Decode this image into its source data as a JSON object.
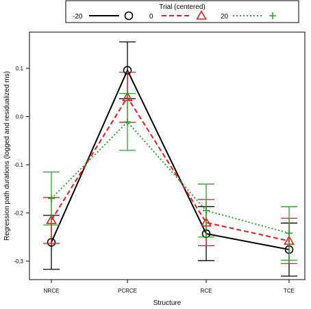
{
  "chart_data": {
    "type": "line",
    "title": "",
    "xlabel": "Structure",
    "ylabel": "Regression path durations (logged and residualized ms)",
    "categories": [
      "NRCE",
      "PCRCE",
      "RCE",
      "TCE"
    ],
    "ylim": [
      -0.35,
      0.15
    ],
    "yticks": [
      0.1,
      0.0,
      -0.1,
      -0.2,
      -0.3
    ],
    "ytick_labels": [
      "0.1",
      "0.0",
      "-0.1",
      "-0.2",
      "-0.3"
    ],
    "grid": false,
    "legend": {
      "title": "Trial (centered)",
      "placement": "top",
      "entries": [
        "-20",
        "0",
        "20"
      ]
    },
    "series": [
      {
        "name": "-20",
        "color": "#000000",
        "line_style": "solid",
        "marker": "circle",
        "values": [
          -0.261,
          0.096,
          -0.243,
          -0.276
        ],
        "ci_lower": [
          -0.317,
          0.037,
          -0.299,
          -0.331
        ],
        "ci_upper": [
          -0.205,
          0.155,
          -0.187,
          -0.221
        ]
      },
      {
        "name": "0",
        "color": "#e41a1c",
        "line_style": "dashed",
        "marker": "triangle",
        "values": [
          -0.215,
          0.04,
          -0.22,
          -0.258
        ],
        "ci_lower": [
          -0.263,
          -0.012,
          -0.268,
          -0.305
        ],
        "ci_upper": [
          -0.168,
          0.092,
          -0.172,
          -0.211
        ]
      },
      {
        "name": "20",
        "color": "#2ca02c",
        "line_style": "dotted",
        "marker": "plus",
        "values": [
          -0.17,
          -0.011,
          -0.195,
          -0.242
        ],
        "ci_lower": [
          -0.225,
          -0.07,
          -0.25,
          -0.298
        ],
        "ci_upper": [
          -0.115,
          0.048,
          -0.14,
          -0.187
        ]
      }
    ]
  }
}
